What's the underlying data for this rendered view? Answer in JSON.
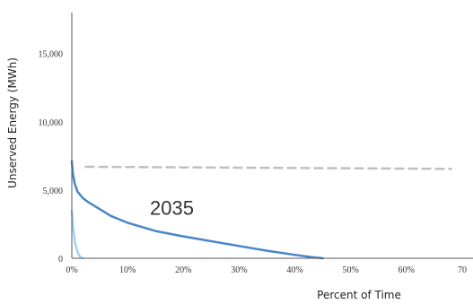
{
  "chart_data": {
    "type": "line",
    "xlabel": "Percent of Time",
    "ylabel": "Unserved Energy (MWh)",
    "xlim": [
      0,
      70
    ],
    "ylim": [
      0,
      18000
    ],
    "x_ticks": [
      0,
      10,
      20,
      30,
      40,
      50,
      60,
      70
    ],
    "x_tick_labels": [
      "0%",
      "10%",
      "20%",
      "30%",
      "40%",
      "50%",
      "60%",
      "70"
    ],
    "y_ticks": [
      0,
      5000,
      10000,
      15000
    ],
    "y_tick_labels": [
      "0",
      "5,000",
      "10,000",
      "15,000"
    ],
    "grid": false,
    "legend": "none",
    "annotations": [
      {
        "text": "2035",
        "x": 14,
        "y": 3200
      }
    ],
    "series": [
      {
        "color": "#4a86c8",
        "style": "solid",
        "x": [
          0,
          0.2,
          0.5,
          1,
          2,
          3,
          5,
          7,
          10,
          15,
          20,
          25,
          30,
          35,
          40,
          43,
          45
        ],
        "y": [
          7100,
          6200,
          5500,
          4900,
          4400,
          4100,
          3600,
          3100,
          2600,
          2000,
          1600,
          1250,
          900,
          550,
          250,
          80,
          0
        ]
      },
      {
        "color": "#9fd4f2",
        "style": "solid",
        "x": [
          0,
          0.3,
          0.6,
          1,
          1.4,
          2
        ],
        "y": [
          3500,
          2000,
          1100,
          500,
          150,
          0
        ]
      },
      {
        "color": "#bfbfbf",
        "style": "dashed",
        "x": [
          2.5,
          68
        ],
        "y": [
          6700,
          6550
        ]
      }
    ]
  }
}
